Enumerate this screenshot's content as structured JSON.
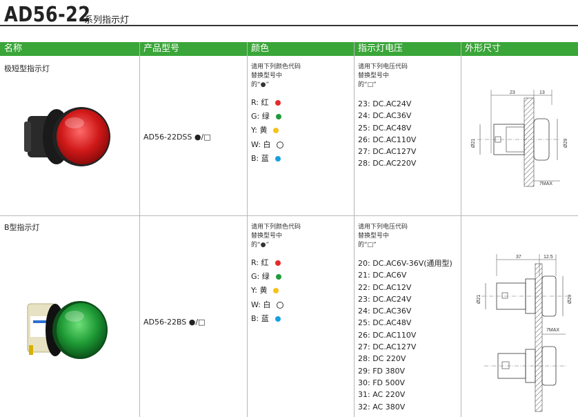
{
  "title": {
    "model": "AD56-22",
    "suffix": "系列指示灯"
  },
  "columns": [
    "名称",
    "产品型号",
    "颜色",
    "指示灯电压",
    "外形尺寸"
  ],
  "rows": [
    {
      "name": "极短型指示灯",
      "model": "AD56-22DSS ●/□",
      "color_note": [
        "请用下列颜色代码",
        "替换型号中",
        "的“●”"
      ],
      "colors": [
        {
          "label": "R: 红",
          "hex": "#e52b2b"
        },
        {
          "label": "G: 绿",
          "hex": "#1f9a3c"
        },
        {
          "label": "Y: 黄",
          "hex": "#f7c219"
        },
        {
          "label": "W: 白",
          "hex": "#ffffff"
        },
        {
          "label": "B: 蓝",
          "hex": "#19a0dc"
        }
      ],
      "voltage_note": [
        "请用下列电压代码",
        "替换型号中",
        "的“□”"
      ],
      "voltages": [
        "23: DC.AC24V",
        "24: DC.AC36V",
        "25: DC.AC48V",
        "26: DC.AC110V",
        "27: DC.AC127V",
        "28: DC.AC220V"
      ],
      "dimensions": {
        "length": "23",
        "flange": "13",
        "dia_small": "Ø21",
        "dia_large": "Ø29",
        "panel": "7MAX"
      },
      "lens_color": "#d01919"
    },
    {
      "name": "B型指示灯",
      "model": "AD56-22BS ●/□",
      "color_note": [
        "请用下列颜色代码",
        "替换型号中",
        "的“●”"
      ],
      "colors": [
        {
          "label": "R: 红",
          "hex": "#e52b2b"
        },
        {
          "label": "G: 绿",
          "hex": "#1f9a3c"
        },
        {
          "label": "Y: 黄",
          "hex": "#f7c219"
        },
        {
          "label": "W: 白",
          "hex": "#ffffff"
        },
        {
          "label": "B: 蓝",
          "hex": "#19a0dc"
        }
      ],
      "voltage_note": [
        "请用下列电压代码",
        "替换型号中",
        "的“□”"
      ],
      "voltages": [
        "20: DC.AC6V-36V(通用型)",
        "21: DC.AC6V",
        "22: DC.AC12V",
        "23: DC.AC24V",
        "24: DC.AC36V",
        "25: DC.AC48V",
        "26: DC.AC110V",
        "27: DC.AC127V",
        "28: DC 220V",
        "29: FD 380V",
        "30: FD 500V",
        "31: AC 220V",
        "32: AC 380V"
      ],
      "dimensions": {
        "length": "37",
        "flange": "12.5",
        "dia_small": "Ø21",
        "dia_large": "Ø29",
        "panel": "7MAX"
      },
      "lens_color": "#1e9a35"
    }
  ]
}
